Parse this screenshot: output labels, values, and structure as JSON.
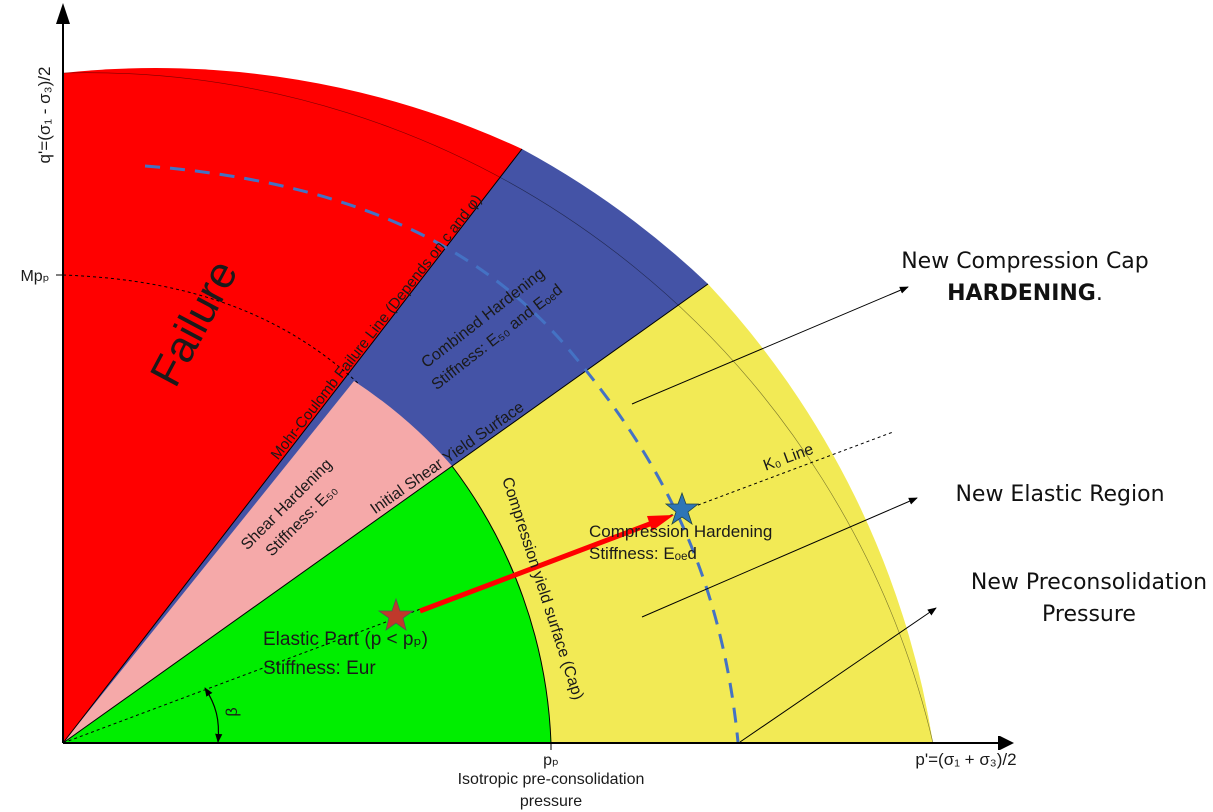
{
  "axes": {
    "y_label": "q'=(σ₁ - σ₃)/2",
    "x_label": "p'=(σ₁ + σ₃)/2",
    "y_tick": "Mpₚ",
    "x_tick": "pₚ",
    "x_tick_caption_line1": "Isotropic pre-consolidation",
    "x_tick_caption_line2": "pressure"
  },
  "regions": {
    "failure": {
      "label": "Failure",
      "color": "#ff0000"
    },
    "combined": {
      "line1": "Combined Hardening",
      "line2": "Stiffness: E₅₀ and Eₒₑd",
      "color": "#4453a6"
    },
    "shear": {
      "line1": "Shear Hardening",
      "line2": "Stiffness: E₅₀",
      "color": "#f5a9a9"
    },
    "elastic": {
      "line1": "Elastic Part (p < pₚ)",
      "line2": "Stiffness: Eur",
      "color": "#00ee00"
    },
    "compression": {
      "line1": "Compression Hardening",
      "line2": "Stiffness: Eₒₑd",
      "color": "#f2ea55"
    }
  },
  "lines": {
    "mohr_coulomb": "Mohr-Coulomb Failure Line (Depends on c and φ)",
    "initial_shear": "Initial Shear Yield Surface",
    "cap": "Compression yield surface (Cap)",
    "k0": "K₀ Line",
    "beta": "β"
  },
  "annotations": {
    "cap_line1": "New Compression Cap",
    "cap_line2": "HARDENING",
    "cap_line2_suffix": ".",
    "elastic": "New Elastic Region",
    "preconsol_line1": "New Preconsolidation",
    "preconsol_line2": "Pressure"
  },
  "colors": {
    "arrow": "#ff0000",
    "star_start": "#c0392b",
    "star_end": "#2e75b6",
    "dashed_cap": "#4472c4"
  }
}
